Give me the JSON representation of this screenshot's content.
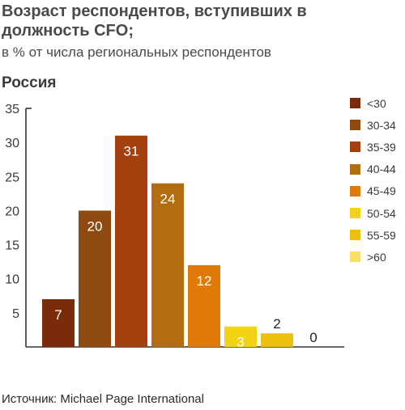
{
  "header": {
    "title": "Возраст респондентов, вступивших в должность CFO;",
    "subtitle": "в % от числа региональных респондентов",
    "region": "Россия"
  },
  "footer": {
    "source": "Источник: Michael Page International"
  },
  "colors": {
    "<30": "#7a2c0a",
    "30-34": "#8f4a10",
    "35-39": "#a2410d",
    "40-44": "#b16d10",
    "45-49": "#df7a08",
    "50-54": "#f2d315",
    "55-59": "#edc00f",
    ">60": "#f7df6a"
  },
  "chart_data": {
    "type": "bar",
    "categories": [
      "<30",
      "30-34",
      "35-39",
      "40-44",
      "45-49",
      "50-54",
      "55-59",
      ">60"
    ],
    "values": [
      7,
      20,
      31,
      24,
      12,
      3,
      2,
      0
    ],
    "data_labels": [
      "7",
      "20",
      "31",
      "24",
      "12",
      "3",
      "2",
      "0"
    ],
    "yticks": [
      "5",
      "10",
      "15",
      "20",
      "25",
      "30",
      "35"
    ],
    "ylim": [
      0,
      35
    ],
    "grid": false,
    "legend": "right"
  }
}
